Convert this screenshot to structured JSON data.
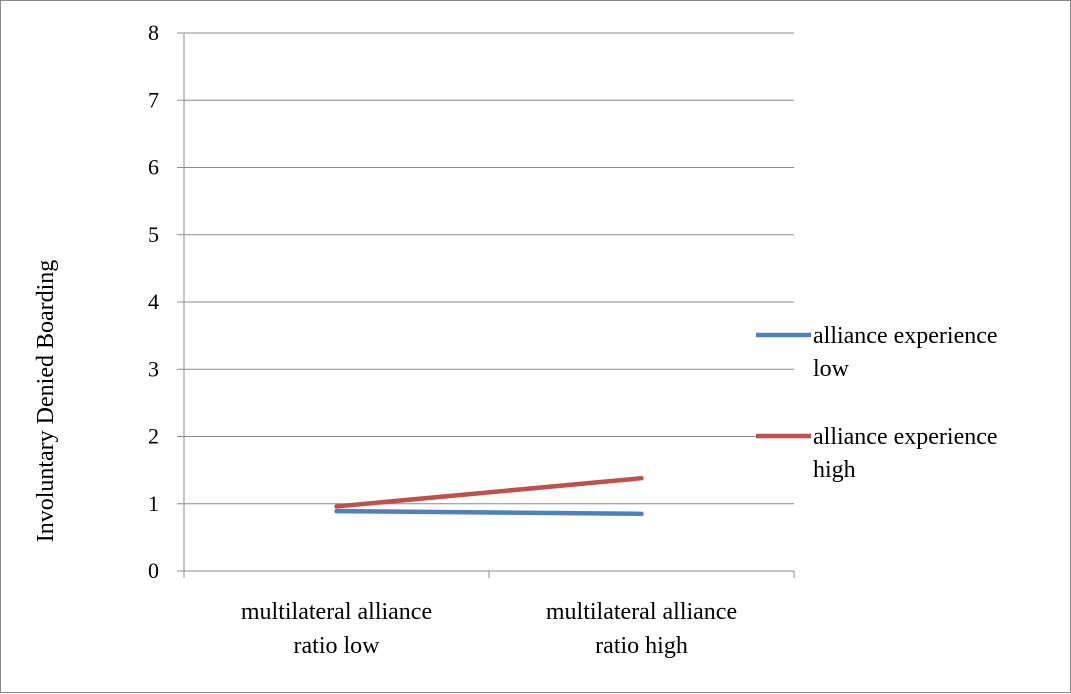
{
  "chart_data": {
    "type": "line",
    "title": "",
    "xlabel": "",
    "ylabel": "Involuntary Denied Boarding",
    "ylim": [
      0,
      8
    ],
    "yticks": [
      "0",
      "1",
      "2",
      "3",
      "4",
      "5",
      "6",
      "7",
      "8"
    ],
    "grid": true,
    "legend_position": "right",
    "categories": [
      [
        "multilateral alliance",
        "ratio low"
      ],
      [
        "multilateral alliance",
        "ratio high"
      ]
    ],
    "series": [
      {
        "name": [
          "alliance experience",
          "low"
        ],
        "values": [
          0.89,
          0.85
        ],
        "color": "#4f81bd"
      },
      {
        "name": [
          "alliance experience",
          "high"
        ],
        "values": [
          0.96,
          1.38
        ],
        "color": "#c0504d"
      }
    ]
  }
}
